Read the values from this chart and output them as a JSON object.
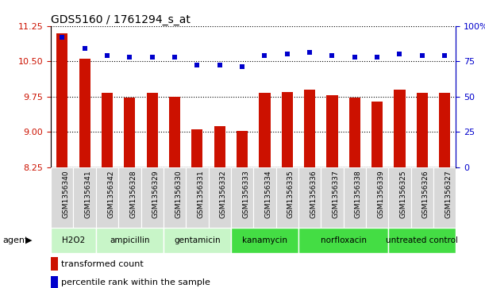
{
  "title": "GDS5160 / 1761294_s_at",
  "samples": [
    "GSM1356340",
    "GSM1356341",
    "GSM1356342",
    "GSM1356328",
    "GSM1356329",
    "GSM1356330",
    "GSM1356331",
    "GSM1356332",
    "GSM1356333",
    "GSM1356334",
    "GSM1356335",
    "GSM1356336",
    "GSM1356337",
    "GSM1356338",
    "GSM1356339",
    "GSM1356325",
    "GSM1356326",
    "GSM1356327"
  ],
  "transformed_count": [
    11.1,
    10.55,
    9.82,
    9.72,
    9.82,
    9.75,
    9.05,
    9.12,
    9.02,
    9.82,
    9.85,
    9.9,
    9.78,
    9.72,
    9.65,
    9.9,
    9.83,
    9.82
  ],
  "percentile_rank": [
    92,
    84,
    79,
    78,
    78,
    78,
    72,
    72,
    71,
    79,
    80,
    81,
    79,
    78,
    78,
    80,
    79,
    79
  ],
  "groups": [
    {
      "label": "H2O2",
      "start": 0,
      "end": 2,
      "color": "#c8f5c8"
    },
    {
      "label": "ampicillin",
      "start": 2,
      "end": 5,
      "color": "#c8f5c8"
    },
    {
      "label": "gentamicin",
      "start": 5,
      "end": 8,
      "color": "#c8f5c8"
    },
    {
      "label": "kanamycin",
      "start": 8,
      "end": 11,
      "color": "#44dd44"
    },
    {
      "label": "norfloxacin",
      "start": 11,
      "end": 15,
      "color": "#44dd44"
    },
    {
      "label": "untreated control",
      "start": 15,
      "end": 18,
      "color": "#44dd44"
    }
  ],
  "ylim_left": [
    8.25,
    11.25
  ],
  "ylim_right": [
    0,
    100
  ],
  "yticks_left": [
    8.25,
    9.0,
    9.75,
    10.5,
    11.25
  ],
  "yticks_right": [
    0,
    25,
    50,
    75,
    100
  ],
  "bar_color": "#cc1100",
  "dot_color": "#0000cc",
  "background_color": "#ffffff",
  "legend_bar_label": "transformed count",
  "legend_dot_label": "percentile rank within the sample",
  "xlabel_agent": "agent"
}
